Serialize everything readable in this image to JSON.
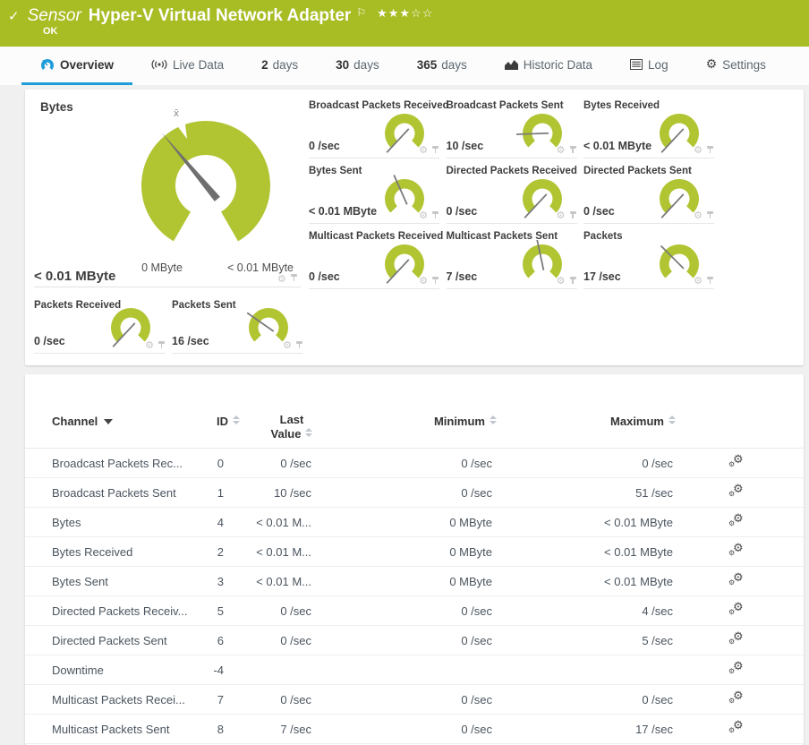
{
  "colors": {
    "green": "#a8bc23",
    "gauge_green": "#b1c431",
    "accent_blue": "#1f9dd9",
    "needle_gray": "#6f6f6f"
  },
  "header": {
    "kind": "Sensor",
    "title": "Hyper-V Virtual Network Adapter",
    "status": "OK",
    "rating": {
      "filled": 3,
      "empty": 2
    }
  },
  "tabs": [
    {
      "icon": "gauge",
      "label": "Overview",
      "active": true
    },
    {
      "icon": "live",
      "label": "Live Data"
    },
    {
      "bold": "2",
      "label": "days"
    },
    {
      "bold": "30",
      "label": "days"
    },
    {
      "bold": "365",
      "label": "days"
    },
    {
      "icon": "chart",
      "label": "Historic Data"
    },
    {
      "icon": "log",
      "label": "Log"
    },
    {
      "icon": "gear",
      "label": "Settings"
    }
  ],
  "primary_gauge": {
    "title": "Bytes",
    "value": "< 0.01 MByte",
    "scale_min": "0 MByte",
    "scale_max": "< 0.01 MByte",
    "mean_marker": "x̄",
    "needle_deg": -40,
    "mean_deg": -22
  },
  "small_gauges": [
    {
      "title": "Broadcast Packets Received",
      "value": "0 /sec",
      "needle_deg": -137
    },
    {
      "title": "Broadcast Packets Sent",
      "value": "10 /sec",
      "needle_deg": -92
    },
    {
      "title": "Bytes Received",
      "value": "< 0.01 MByte",
      "needle_deg": -137
    },
    {
      "title": "Bytes Sent",
      "value": "< 0.01 MByte",
      "needle_deg": -24
    },
    {
      "title": "Directed Packets Received",
      "value": "0 /sec",
      "needle_deg": -137
    },
    {
      "title": "Directed Packets Sent",
      "value": "0 /sec",
      "needle_deg": -137
    },
    {
      "title": "Multicast Packets Received",
      "value": "0 /sec",
      "needle_deg": -137
    },
    {
      "title": "Multicast Packets Sent",
      "value": "7 /sec",
      "needle_deg": -12
    },
    {
      "title": "Packets",
      "value": "17 /sec",
      "needle_deg": -45
    }
  ],
  "bottom_gauges": [
    {
      "title": "Packets Received",
      "value": "0 /sec",
      "needle_deg": -137
    },
    {
      "title": "Packets Sent",
      "value": "16 /sec",
      "needle_deg": -55
    }
  ],
  "table": {
    "columns": [
      {
        "label": "Channel",
        "sort": "desc"
      },
      {
        "label": "ID",
        "sort": "none"
      },
      {
        "label": "Last Value",
        "sort": "none"
      },
      {
        "label": "Minimum",
        "sort": "none"
      },
      {
        "label": "Maximum",
        "sort": "none"
      }
    ],
    "rows": [
      {
        "channel": "Broadcast Packets Rec...",
        "id": "0",
        "last": "0 /sec",
        "min": "0 /sec",
        "max": "0 /sec"
      },
      {
        "channel": "Broadcast Packets Sent",
        "id": "1",
        "last": "10 /sec",
        "min": "0 /sec",
        "max": "51 /sec"
      },
      {
        "channel": "Bytes",
        "id": "4",
        "last": "< 0.01 M...",
        "min": "0 MByte",
        "max": "< 0.01 MByte"
      },
      {
        "channel": "Bytes Received",
        "id": "2",
        "last": "< 0.01 M...",
        "min": "0 MByte",
        "max": "< 0.01 MByte"
      },
      {
        "channel": "Bytes Sent",
        "id": "3",
        "last": "< 0.01 M...",
        "min": "0 MByte",
        "max": "< 0.01 MByte"
      },
      {
        "channel": "Directed Packets Receiv...",
        "id": "5",
        "last": "0 /sec",
        "min": "0 /sec",
        "max": "4 /sec"
      },
      {
        "channel": "Directed Packets Sent",
        "id": "6",
        "last": "0 /sec",
        "min": "0 /sec",
        "max": "5 /sec"
      },
      {
        "channel": "Downtime",
        "id": "-4",
        "last": "",
        "min": "",
        "max": ""
      },
      {
        "channel": "Multicast Packets Recei...",
        "id": "7",
        "last": "0 /sec",
        "min": "0 /sec",
        "max": "0 /sec"
      },
      {
        "channel": "Multicast Packets Sent",
        "id": "8",
        "last": "7 /sec",
        "min": "0 /sec",
        "max": "17 /sec"
      }
    ]
  }
}
